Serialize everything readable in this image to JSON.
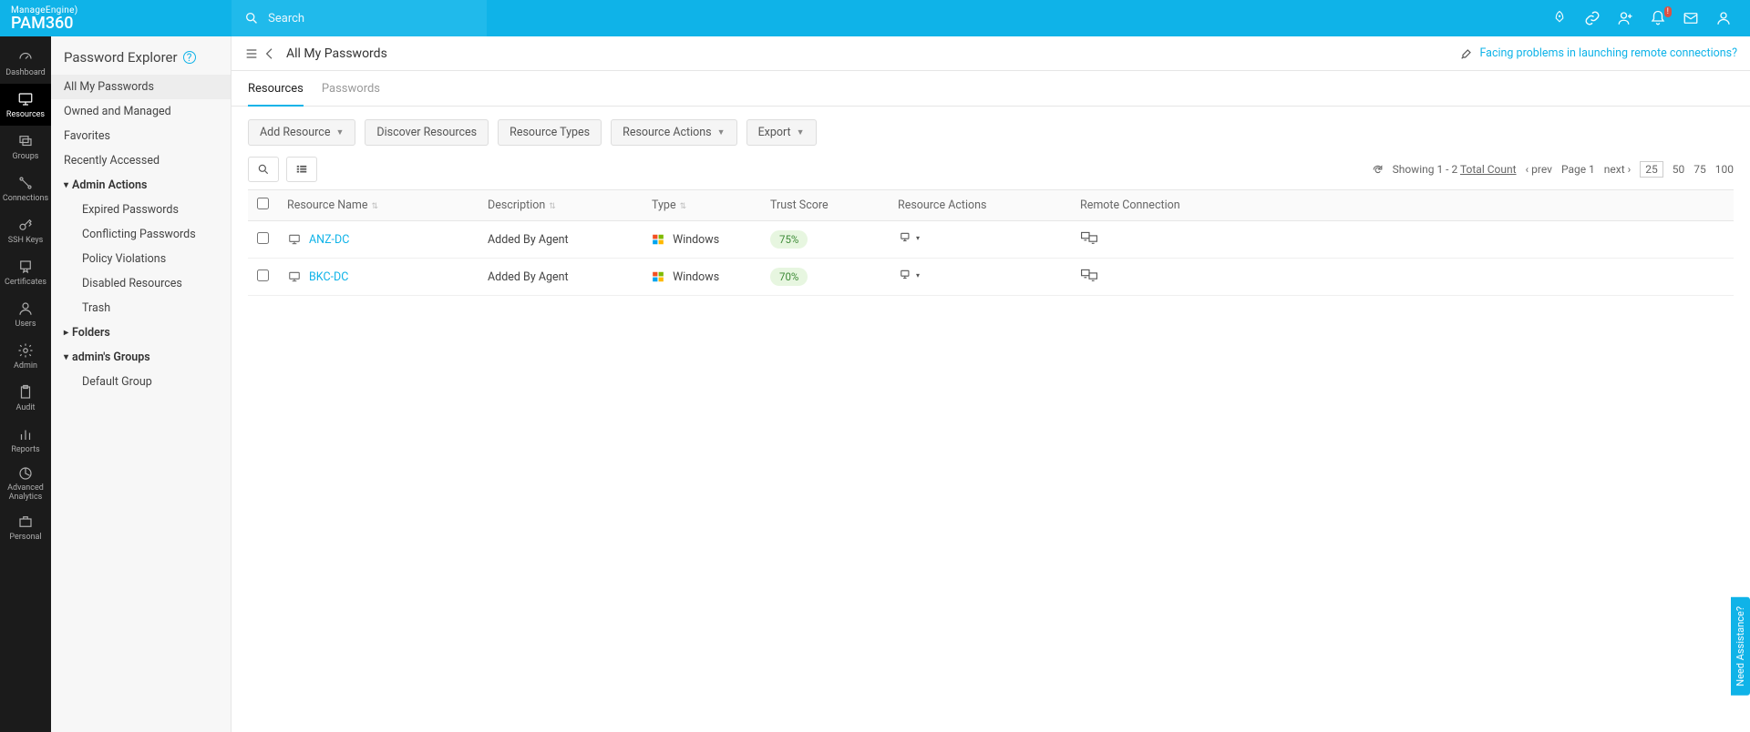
{
  "brand": {
    "top": "ManageEngine)",
    "main": "PAM360"
  },
  "search": {
    "placeholder": "Search"
  },
  "leftnav": [
    {
      "label": "Dashboard"
    },
    {
      "label": "Resources"
    },
    {
      "label": "Groups"
    },
    {
      "label": "Connections"
    },
    {
      "label": "SSH Keys"
    },
    {
      "label": "Certificates"
    },
    {
      "label": "Users"
    },
    {
      "label": "Admin"
    },
    {
      "label": "Audit"
    },
    {
      "label": "Reports"
    },
    {
      "label": "Advanced Analytics"
    },
    {
      "label": "Personal"
    }
  ],
  "explorer": {
    "title": "Password Explorer",
    "items": {
      "all": "All My Passwords",
      "owned": "Owned and Managed",
      "fav": "Favorites",
      "recent": "Recently Accessed",
      "admin_actions": "Admin Actions",
      "expired": "Expired Passwords",
      "conflict": "Conflicting Passwords",
      "policy": "Policy Violations",
      "disabled": "Disabled Resources",
      "trash": "Trash",
      "folders": "Folders",
      "admin_groups": "admin's Groups",
      "default_group": "Default Group"
    }
  },
  "page": {
    "title": "All My Passwords",
    "help_link": "Facing problems in launching remote connections?"
  },
  "tabs": {
    "resources": "Resources",
    "passwords": "Passwords"
  },
  "toolbar": {
    "add": "Add Resource",
    "discover": "Discover Resources",
    "types": "Resource Types",
    "actions": "Resource Actions",
    "export": "Export"
  },
  "pager": {
    "summary_pre": "Showing 1 - 2 ",
    "summary_link": "Total Count",
    "prev": "prev",
    "page": "Page 1",
    "next": "next",
    "sizes": [
      "25",
      "50",
      "75",
      "100"
    ],
    "selected_size": "25"
  },
  "columns": {
    "name": "Resource Name",
    "desc": "Description",
    "type": "Type",
    "trust": "Trust Score",
    "actions": "Resource Actions",
    "remote": "Remote Connection"
  },
  "rows": [
    {
      "name": "ANZ-DC",
      "desc": "Added By Agent",
      "type": "Windows",
      "trust": "75%"
    },
    {
      "name": "BKC-DC",
      "desc": "Added By Agent",
      "type": "Windows",
      "trust": "70%"
    }
  ],
  "assist": "Need Assistance?",
  "colors": {
    "primary": "#0fb3e8",
    "trust_bg": "#e7f6e0",
    "trust_fg": "#3d8b37"
  }
}
